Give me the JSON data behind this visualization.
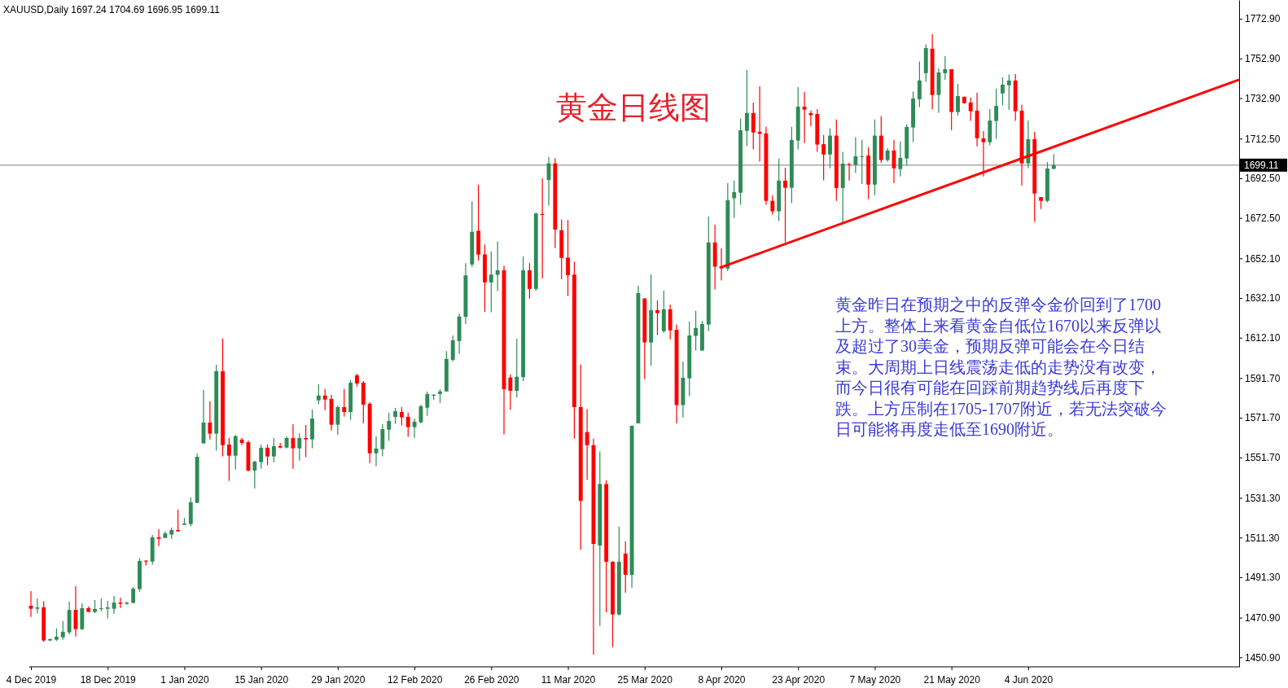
{
  "chart_data": {
    "type": "candlestick",
    "title": "XAUUSD,Daily 1697.24 1704.69 1696.95 1699.11",
    "annotations": [
      "黄金日线图",
      "黄金昨日在预期之中的反弹令金价回到了1700上方。整体上来看黄金自低位1670以来反弹以及超过了30美金，预期反弹可能会在今日结束。大周期上日线震荡走低的走势没有改变，而今日很有可能在回踩前期趋势线后再度下跌。上方压制在1705-1707附近，若无法突破今日可能将再度走低至1690附近。"
    ],
    "categories": [
      "4 Dec 2019",
      null,
      null,
      null,
      null,
      null,
      null,
      null,
      null,
      null,
      null,
      null,
      "18 Dec 2019",
      null,
      null,
      null,
      null,
      null,
      null,
      null,
      null,
      null,
      null,
      null,
      "1 Jan 2020",
      null,
      null,
      null,
      null,
      null,
      null,
      null,
      null,
      null,
      null,
      null,
      "15 Jan 2020",
      null,
      null,
      null,
      null,
      null,
      null,
      null,
      null,
      null,
      null,
      null,
      "29 Jan 2020",
      null,
      null,
      null,
      null,
      null,
      null,
      null,
      null,
      null,
      null,
      null,
      "12 Feb 2020",
      null,
      null,
      null,
      null,
      null,
      null,
      null,
      null,
      null,
      null,
      null,
      "26 Feb 2020",
      null,
      null,
      null,
      null,
      null,
      null,
      null,
      null,
      null,
      null,
      null,
      "11 Mar 2020",
      null,
      null,
      null,
      null,
      null,
      null,
      null,
      null,
      null,
      null,
      null,
      "25 Mar 2020",
      null,
      null,
      null,
      null,
      null,
      null,
      null,
      null,
      null,
      null,
      null,
      "8 Apr 2020",
      null,
      null,
      null,
      null,
      null,
      null,
      null,
      null,
      null,
      null,
      null,
      "23 Apr 2020",
      null,
      null,
      null,
      null,
      null,
      null,
      null,
      null,
      null,
      null,
      null,
      "7 May 2020",
      null,
      null,
      null,
      null,
      null,
      null,
      null,
      null,
      null,
      null,
      null,
      "21 May 2020",
      null,
      null,
      null,
      null,
      null,
      null,
      null,
      null,
      null,
      null,
      null,
      "4 Jun 2020",
      null,
      null,
      null,
      null,
      null,
      null,
      null,
      null,
      null,
      null,
      null,
      null,
      null,
      null,
      null,
      null,
      null,
      null,
      null,
      null,
      null,
      null,
      null,
      null,
      null,
      null,
      null,
      null,
      null,
      null,
      null,
      null,
      null
    ],
    "series": [
      {
        "type": "candlestick",
        "ohlc": [
          [
            1476.9,
            1484.3,
            1471.3,
            1475.4
          ],
          [
            1475.4,
            1480.6,
            1473.1,
            1476.1
          ],
          [
            1476.1,
            1479.2,
            1458.7,
            1459.4
          ],
          [
            1459.4,
            1460.3,
            1459.1,
            1460.1
          ],
          [
            1459.8,
            1465.5,
            1459.1,
            1461.3
          ],
          [
            1461.0,
            1469.2,
            1459.8,
            1463.8
          ],
          [
            1463.5,
            1478.9,
            1462.5,
            1474.8
          ],
          [
            1474.8,
            1486.8,
            1461.4,
            1465.1
          ],
          [
            1465.1,
            1478.1,
            1464.7,
            1475.7
          ],
          [
            1475.7,
            1476.5,
            1473.8,
            1473.8
          ],
          [
            1473.8,
            1479.8,
            1473.1,
            1475.3
          ],
          [
            1475.3,
            1480.6,
            1474.2,
            1475.7
          ],
          [
            1475.4,
            1479.4,
            1470.5,
            1476.1
          ],
          [
            1475.4,
            1481.8,
            1472.9,
            1478.5
          ],
          [
            1478.5,
            1481.0,
            1475.8,
            1477.9
          ],
          [
            1477.9,
            1478.9,
            1477.4,
            1478.5
          ],
          [
            1478.3,
            1486.3,
            1478.3,
            1485.5
          ],
          [
            1485.3,
            1500.9,
            1484.0,
            1499.5
          ],
          [
            1499.6,
            1500.0,
            1497.2,
            1499.2
          ],
          [
            1499.2,
            1512.6,
            1497.6,
            1511.4
          ],
          [
            1511.4,
            1515.5,
            1507.0,
            1510.7
          ],
          [
            1511.1,
            1514.3,
            1511.1,
            1513.4
          ],
          [
            1512.8,
            1516.3,
            1510.7,
            1515.1
          ],
          [
            1515.1,
            1525.4,
            1514.4,
            1514.4
          ],
          [
            1517.7,
            1521.2,
            1517.7,
            1518.4
          ],
          [
            1518.1,
            1531.5,
            1516.9,
            1529.1
          ],
          [
            1528.8,
            1553.7,
            1528.8,
            1552.0
          ],
          [
            1558.8,
            1585.7,
            1558.8,
            1569.3
          ],
          [
            1569.3,
            1580.0,
            1560.8,
            1563.7
          ],
          [
            1563.7,
            1598.5,
            1555.1,
            1595.2
          ],
          [
            1595.2,
            1611.7,
            1552.2,
            1557.9
          ],
          [
            1558.2,
            1561.5,
            1539.9,
            1552.6
          ],
          [
            1552.6,
            1562.9,
            1545.6,
            1562.5
          ],
          [
            1560.7,
            1561.6,
            1557.9,
            1559.0
          ],
          [
            1559.4,
            1560.3,
            1544.7,
            1545.1
          ],
          [
            1545.1,
            1550.0,
            1536.0,
            1549.6
          ],
          [
            1549.3,
            1558.2,
            1546.0,
            1556.6
          ],
          [
            1556.6,
            1558.2,
            1547.7,
            1552.2
          ],
          [
            1552.2,
            1561.5,
            1549.3,
            1557.4
          ],
          [
            1557.4,
            1559.0,
            1556.3,
            1556.7
          ],
          [
            1556.7,
            1562.3,
            1556.3,
            1561.5
          ],
          [
            1561.5,
            1568.5,
            1546.0,
            1556.3
          ],
          [
            1556.3,
            1564.0,
            1550.1,
            1561.5
          ],
          [
            1561.5,
            1568.1,
            1551.8,
            1560.8
          ],
          [
            1560.8,
            1575.9,
            1556.3,
            1571.3
          ],
          [
            1580.5,
            1588.6,
            1578.5,
            1582.9
          ],
          [
            1582.9,
            1586.2,
            1575.6,
            1580.9
          ],
          [
            1581.2,
            1583.3,
            1565.3,
            1568.2
          ],
          [
            1568.2,
            1577.9,
            1563.1,
            1577.1
          ],
          [
            1577.1,
            1586.2,
            1572.3,
            1574.6
          ],
          [
            1574.6,
            1590.7,
            1570.7,
            1589.4
          ],
          [
            1593.1,
            1593.9,
            1587.4,
            1589.0
          ],
          [
            1589.4,
            1590.2,
            1568.9,
            1578.3
          ],
          [
            1578.8,
            1579.6,
            1548.9,
            1553.8
          ],
          [
            1553.8,
            1562.3,
            1547.3,
            1556.2
          ],
          [
            1555.9,
            1568.5,
            1552.2,
            1566.0
          ],
          [
            1565.7,
            1574.2,
            1560.0,
            1570.1
          ],
          [
            1572.1,
            1576.7,
            1568.6,
            1575.0
          ],
          [
            1574.6,
            1577.1,
            1567.8,
            1571.9
          ],
          [
            1572.2,
            1574.2,
            1562.1,
            1567.0
          ],
          [
            1567.0,
            1571.3,
            1561.6,
            1569.7
          ],
          [
            1569.4,
            1578.3,
            1569.0,
            1577.5
          ],
          [
            1576.8,
            1584.9,
            1572.7,
            1583.7
          ],
          [
            1582.8,
            1583.7,
            1580.7,
            1583.3
          ],
          [
            1583.7,
            1586.1,
            1579.1,
            1585.0
          ],
          [
            1585.0,
            1605.3,
            1585.0,
            1601.4
          ],
          [
            1600.9,
            1613.2,
            1600.1,
            1610.8
          ],
          [
            1610.4,
            1624.2,
            1604.0,
            1622.8
          ],
          [
            1622.6,
            1649.7,
            1619.0,
            1643.5
          ],
          [
            1649.0,
            1680.9,
            1647.7,
            1665.5
          ],
          [
            1666.0,
            1689.3,
            1651.0,
            1654.0
          ],
          [
            1654.1,
            1659.1,
            1625.2,
            1640.0
          ],
          [
            1640.0,
            1655.5,
            1624.9,
            1643.9
          ],
          [
            1643.8,
            1660.7,
            1635.6,
            1646.1
          ],
          [
            1646.1,
            1648.4,
            1563.3,
            1586.1
          ],
          [
            1592.0,
            1593.5,
            1575.8,
            1585.3
          ],
          [
            1585.3,
            1611.6,
            1582.0,
            1592.4
          ],
          [
            1592.2,
            1653.0,
            1590.2,
            1646.1
          ],
          [
            1646.1,
            1649.7,
            1631.8,
            1636.7
          ],
          [
            1636.7,
            1675.2,
            1635.7,
            1674.7
          ],
          [
            1674.5,
            1692.4,
            1642.0,
            1674.0
          ],
          [
            1691.6,
            1703.3,
            1678.8,
            1700.0
          ],
          [
            1700.0,
            1702.6,
            1657.3,
            1666.6
          ],
          [
            1666.3,
            1671.7,
            1641.6,
            1652.3
          ],
          [
            1652.5,
            1671.4,
            1633.1,
            1643.6
          ],
          [
            1643.9,
            1650.4,
            1561.2,
            1577.1
          ],
          [
            1577.1,
            1598.5,
            1505.1,
            1529.8
          ],
          [
            1564.5,
            1576.1,
            1540.3,
            1557.9
          ],
          [
            1557.9,
            1561.2,
            1452.3,
            1508.1
          ],
          [
            1507.3,
            1554.7,
            1466.7,
            1538.3
          ],
          [
            1538.3,
            1540.1,
            1473.6,
            1499.1
          ],
          [
            1499.1,
            1499.4,
            1456.0,
            1472.5
          ],
          [
            1472.5,
            1516.8,
            1472.0,
            1499.1
          ],
          [
            1503.2,
            1509.4,
            1483.5,
            1492.5
          ],
          [
            1492.5,
            1567.7,
            1485.9,
            1567.7
          ],
          [
            1568.9,
            1638.4,
            1568.9,
            1634.6
          ],
          [
            1631.9,
            1631.9,
            1591.2,
            1609.7
          ],
          [
            1609.7,
            1644.0,
            1597.9,
            1626.0
          ],
          [
            1626.0,
            1630.9,
            1613.4,
            1624.5
          ],
          [
            1615.4,
            1635.8,
            1614.6,
            1626.4
          ],
          [
            1626.4,
            1628.8,
            1611.3,
            1615.8
          ],
          [
            1616.1,
            1618.8,
            1568.9,
            1578.1
          ],
          [
            1578.1,
            1600.1,
            1571.9,
            1591.9
          ],
          [
            1591.6,
            1620.2,
            1582.6,
            1613.2
          ],
          [
            1613.0,
            1625.6,
            1605.6,
            1617.0
          ],
          [
            1605.6,
            1620.6,
            1605.6,
            1619.0
          ],
          [
            1618.7,
            1673.2,
            1615.4,
            1660.1
          ],
          [
            1660.1,
            1669.1,
            1636.4,
            1647.9
          ],
          [
            1648.1,
            1657.2,
            1640.9,
            1647.0
          ],
          [
            1647.0,
            1690.0,
            1645.8,
            1681.4
          ],
          [
            1682.4,
            1691.3,
            1672.5,
            1685.5
          ],
          [
            1685.2,
            1722.5,
            1679.1,
            1716.7
          ],
          [
            1716.4,
            1747.1,
            1708.7,
            1725.4
          ],
          [
            1725.4,
            1730.7,
            1707.0,
            1715.6
          ],
          [
            1716.0,
            1738.9,
            1700.9,
            1714.9
          ],
          [
            1715.1,
            1718.4,
            1679.1,
            1681.1
          ],
          [
            1681.1,
            1683.9,
            1674.2,
            1675.8
          ],
          [
            1675.8,
            1702.4,
            1670.9,
            1691.3
          ],
          [
            1691.3,
            1697.8,
            1660.2,
            1687.7
          ],
          [
            1687.7,
            1718.4,
            1679.9,
            1711.8
          ],
          [
            1711.5,
            1738.5,
            1707.0,
            1728.6
          ],
          [
            1728.6,
            1736.0,
            1710.3,
            1727.1
          ],
          [
            1725.4,
            1726.6,
            1718.9,
            1724.3
          ],
          [
            1724.9,
            1727.4,
            1705.8,
            1709.5
          ],
          [
            1709.7,
            1714.3,
            1691.4,
            1704.5
          ],
          [
            1704.5,
            1717.7,
            1697.5,
            1714.0
          ],
          [
            1714.0,
            1722.1,
            1681.1,
            1687.6
          ],
          [
            1687.6,
            1705.8,
            1669.5,
            1699.9
          ],
          [
            1699.6,
            1700.4,
            1691.3,
            1699.2
          ],
          [
            1699.2,
            1713.2,
            1695.1,
            1703.6
          ],
          [
            1703.3,
            1711.9,
            1689.6,
            1703.6
          ],
          [
            1704.0,
            1708.1,
            1681.9,
            1689.3
          ],
          [
            1689.3,
            1722.2,
            1683.9,
            1714.0
          ],
          [
            1714.0,
            1723.8,
            1700.3,
            1701.7
          ],
          [
            1701.7,
            1707.8,
            1700.8,
            1706.5
          ],
          [
            1706.5,
            1711.9,
            1690.0,
            1697.5
          ],
          [
            1697.1,
            1711.1,
            1693.4,
            1702.8
          ],
          [
            1702.5,
            1719.7,
            1698.9,
            1718.4
          ],
          [
            1718.1,
            1736.2,
            1710.7,
            1732.7
          ],
          [
            1732.4,
            1751.4,
            1728.4,
            1741.8
          ],
          [
            1745.5,
            1760.0,
            1741.1,
            1758.2
          ],
          [
            1757.8,
            1765.2,
            1727.3,
            1734.5
          ],
          [
            1734.5,
            1747.9,
            1725.5,
            1745.9
          ],
          [
            1745.5,
            1754.1,
            1742.2,
            1747.5
          ],
          [
            1747.5,
            1747.5,
            1716.7,
            1725.9
          ],
          [
            1725.9,
            1740.1,
            1724.1,
            1734.0
          ],
          [
            1733.6,
            1733.6,
            1730.0,
            1730.4
          ],
          [
            1730.7,
            1733.1,
            1721.4,
            1726.3
          ],
          [
            1726.6,
            1735.6,
            1708.6,
            1712.7
          ],
          [
            1712.6,
            1716.3,
            1693.4,
            1710.7
          ],
          [
            1710.7,
            1727.4,
            1709.1,
            1721.6
          ],
          [
            1721.4,
            1737.7,
            1712.3,
            1729.0
          ],
          [
            1735.3,
            1743.4,
            1729.2,
            1739.7
          ],
          [
            1739.4,
            1744.8,
            1727.1,
            1741.8
          ],
          [
            1741.8,
            1745.0,
            1721.4,
            1726.3
          ],
          [
            1726.6,
            1729.5,
            1688.9,
            1700.0
          ],
          [
            1700.0,
            1721.6,
            1697.5,
            1712.2
          ],
          [
            1712.2,
            1715.9,
            1670.5,
            1684.8
          ],
          [
            1683.0,
            1683.0,
            1677.0,
            1681.1
          ],
          [
            1681.1,
            1700.7,
            1680.3,
            1697.4
          ],
          [
            1697.24,
            1704.69,
            1696.95,
            1699.11
          ],
          null,
          null,
          null,
          null,
          null,
          null,
          null,
          null,
          null,
          null,
          null,
          null,
          null,
          null,
          null,
          null,
          null,
          null,
          null,
          null,
          null,
          null,
          null,
          null,
          null,
          null,
          null,
          null,
          null
        ],
        "colors": [
          "#ff0000",
          "#2e8b57",
          "#ff0000",
          "#2e8b57",
          "#2e8b57",
          "#2e8b57",
          "#2e8b57",
          "#ff0000",
          "#2e8b57",
          "#ff0000",
          "#2e8b57",
          "#2e8b57",
          "#2e8b57",
          "#2e8b57",
          "#ff0000",
          "#2e8b57",
          "#2e8b57",
          "#2e8b57",
          "#ff0000",
          "#2e8b57",
          "#ff0000",
          "#2e8b57",
          "#2e8b57",
          "#ff0000",
          "#2e8b57",
          "#2e8b57",
          "#2e8b57",
          "#2e8b57",
          "#ff0000",
          "#2e8b57",
          "#ff0000",
          "#ff0000",
          "#2e8b57",
          "#ff0000",
          "#ff0000",
          "#2e8b57",
          "#2e8b57",
          "#ff0000",
          "#2e8b57",
          "#ff0000",
          "#2e8b57",
          "#ff0000",
          "#2e8b57",
          "#ff0000",
          "#2e8b57",
          "#2e8b57",
          "#ff0000",
          "#ff0000",
          "#2e8b57",
          "#ff0000",
          "#2e8b57",
          "#ff0000",
          "#ff0000",
          "#ff0000",
          "#2e8b57",
          "#2e8b57",
          "#2e8b57",
          "#2e8b57",
          "#ff0000",
          "#ff0000",
          "#2e8b57",
          "#2e8b57",
          "#2e8b57",
          "#2e8b57",
          "#2e8b57",
          "#2e8b57",
          "#2e8b57",
          "#2e8b57",
          "#2e8b57",
          "#2e8b57",
          "#ff0000",
          "#ff0000",
          "#2e8b57",
          "#2e8b57",
          "#ff0000",
          "#ff0000",
          "#2e8b57",
          "#2e8b57",
          "#ff0000",
          "#2e8b57",
          "#ff0000",
          "#2e8b57",
          "#ff0000",
          "#ff0000",
          "#ff0000",
          "#ff0000",
          "#ff0000",
          "#ff0000",
          "#ff0000",
          "#2e8b57",
          "#ff0000",
          "#ff0000",
          "#2e8b57",
          "#ff0000",
          "#2e8b57",
          "#2e8b57",
          "#ff0000",
          "#2e8b57",
          "#ff0000",
          "#2e8b57",
          "#ff0000",
          "#ff0000",
          "#2e8b57",
          "#2e8b57",
          "#2e8b57",
          "#2e8b57",
          "#2e8b57",
          "#ff0000",
          "#ff0000",
          "#2e8b57",
          "#2e8b57",
          "#2e8b57",
          "#2e8b57",
          "#ff0000",
          "#ff0000",
          "#ff0000",
          "#ff0000",
          "#2e8b57",
          "#ff0000",
          "#2e8b57",
          "#2e8b57",
          "#ff0000",
          "#ff0000",
          "#ff0000",
          "#ff0000",
          "#2e8b57",
          "#ff0000",
          "#2e8b57",
          "#ff0000",
          "#2e8b57",
          "#2e8b57",
          "#ff0000",
          "#2e8b57",
          "#ff0000",
          "#2e8b57",
          "#ff0000",
          "#2e8b57",
          "#2e8b57",
          "#2e8b57",
          "#2e8b57",
          "#2e8b57",
          "#ff0000",
          "#2e8b57",
          "#2e8b57",
          "#ff0000",
          "#2e8b57",
          "#ff0000",
          "#ff0000",
          "#ff0000",
          "#ff0000",
          "#2e8b57",
          "#2e8b57",
          "#2e8b57",
          "#2e8b57",
          "#ff0000",
          "#ff0000",
          "#2e8b57",
          "#ff0000",
          "#ff0000",
          "#2e8b57",
          "#2e8b57",
          null,
          null,
          null,
          null,
          null,
          null,
          null,
          null,
          null,
          null,
          null,
          null,
          null,
          null,
          null,
          null,
          null,
          null,
          null,
          null,
          null,
          null,
          null,
          null,
          null,
          null,
          null,
          null,
          null
        ]
      },
      {
        "type": "line",
        "color": "#ff0000",
        "line_style": "solid",
        "values": [
          null,
          null,
          null,
          null,
          null,
          null,
          null,
          null,
          null,
          null,
          null,
          null,
          null,
          null,
          null,
          null,
          null,
          null,
          null,
          null,
          null,
          null,
          null,
          null,
          null,
          null,
          null,
          null,
          null,
          null,
          null,
          null,
          null,
          null,
          null,
          null,
          null,
          null,
          null,
          null,
          null,
          null,
          null,
          null,
          null,
          null,
          null,
          null,
          null,
          null,
          null,
          null,
          null,
          null,
          null,
          null,
          null,
          null,
          null,
          null,
          null,
          null,
          null,
          null,
          null,
          null,
          null,
          null,
          null,
          null,
          null,
          null,
          null,
          null,
          null,
          null,
          null,
          null,
          null,
          null,
          null,
          null,
          null,
          null,
          null,
          null,
          null,
          null,
          null,
          null,
          null,
          null,
          null,
          null,
          null,
          null,
          null,
          null,
          null,
          null,
          null,
          null,
          null,
          null,
          null,
          null,
          null,
          null,
          1647.7,
          null,
          null,
          null,
          null,
          null,
          null,
          null,
          null,
          null,
          null,
          null,
          null,
          null,
          null,
          null,
          null,
          null,
          null,
          null,
          null,
          null,
          null,
          null,
          null,
          null,
          null,
          null,
          null,
          null,
          null,
          null,
          null,
          null,
          null,
          null,
          null,
          null,
          null,
          null,
          null,
          null,
          null,
          null,
          null,
          null,
          null,
          null,
          null,
          null,
          null,
          null,
          null,
          null,
          null,
          null,
          null,
          null,
          null,
          null,
          null,
          null,
          null,
          null,
          null,
          null,
          null,
          null,
          null,
          null,
          null,
          null,
          null,
          null,
          null,
          null,
          null,
          null,
          null,
          null,
          null,
          1742.2
        ]
      }
    ],
    "ylim": [
      1446.1,
      1782.4
    ],
    "yticks": [
      {
        "value": 1772.9,
        "label": "1772.90"
      },
      {
        "value": 1752.9,
        "label": "1752.90"
      },
      {
        "value": 1732.9,
        "label": "1732.90"
      },
      {
        "value": 1712.5,
        "label": "1712.50"
      },
      {
        "value": 1692.5,
        "label": "1692.50"
      },
      {
        "value": 1672.5,
        "label": "1672.50"
      },
      {
        "value": 1652.1,
        "label": "1652.10"
      },
      {
        "value": 1632.1,
        "label": "1632.10"
      },
      {
        "value": 1612.1,
        "label": "1612.10"
      },
      {
        "value": 1591.7,
        "label": "1591.70"
      },
      {
        "value": 1571.7,
        "label": "1571.70"
      },
      {
        "value": 1551.7,
        "label": "1551.70"
      },
      {
        "value": 1531.3,
        "label": "1531.30"
      },
      {
        "value": 1511.3,
        "label": "1511.30"
      },
      {
        "value": 1491.3,
        "label": "1491.30"
      },
      {
        "value": 1470.9,
        "label": "1470.90"
      },
      {
        "value": 1450.9,
        "label": "1450.90"
      }
    ],
    "ref_lines": [
      {
        "axis": "y",
        "value": 1699.11,
        "label": "1699.11",
        "color": "#808080"
      }
    ]
  }
}
